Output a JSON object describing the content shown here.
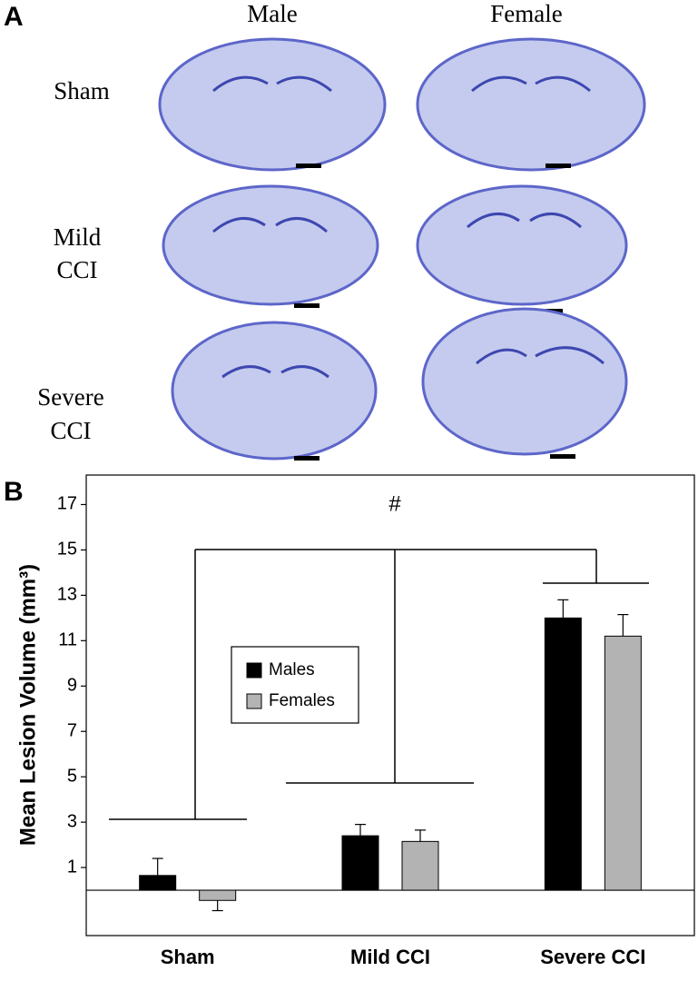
{
  "panel_a": {
    "label": "A",
    "columns": [
      "Male",
      "Female"
    ],
    "rows": [
      [
        "Sham"
      ],
      [
        "Mild",
        "CCI"
      ],
      [
        "Severe",
        "CCI"
      ]
    ]
  },
  "chart_data": {
    "type": "bar",
    "panel_label": "B",
    "categories": [
      "Sham",
      "Mild CCI",
      "Severe CCI"
    ],
    "y_label": "Mean Lesion Volume (mm³)",
    "ylim": [
      -2,
      18.3
    ],
    "yticks": [
      1,
      3,
      5,
      7,
      9,
      11,
      13,
      15,
      17
    ],
    "series": [
      {
        "name": "Males",
        "color": "#000000",
        "values": [
          0.65,
          2.4,
          12.0
        ],
        "errors": [
          0.75,
          0.5,
          0.8
        ]
      },
      {
        "name": "Females",
        "color": "#b3b3b3",
        "values": [
          -0.45,
          2.15,
          11.2
        ],
        "errors": [
          0.45,
          0.5,
          0.95
        ]
      }
    ],
    "annotations": [
      "#"
    ],
    "legend": "upper-left"
  }
}
